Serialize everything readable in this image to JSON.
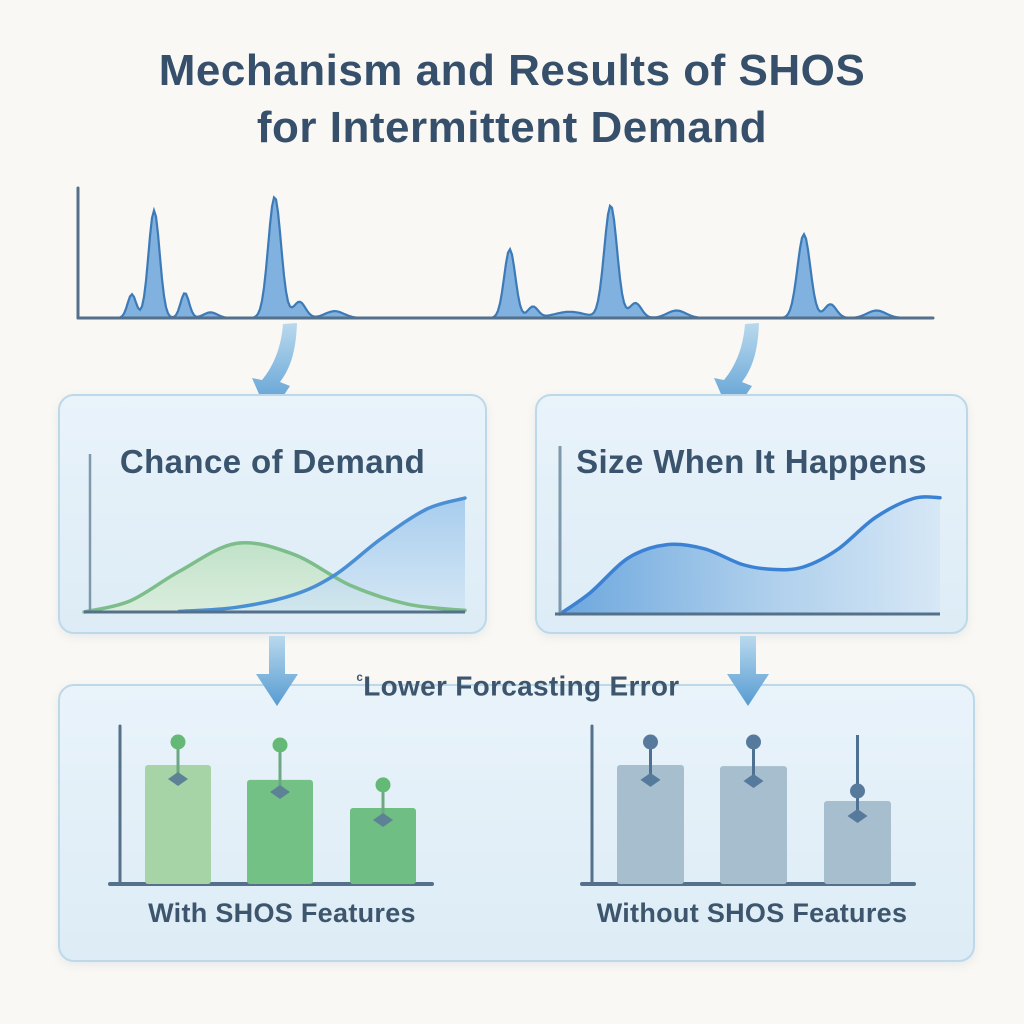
{
  "title": {
    "line1": "Mechanism and Results of SHOS",
    "line2": "for Intermittent Demand"
  },
  "panels": {
    "chance": {
      "title": "Chance of Demand"
    },
    "size": {
      "title": "Size When It Happens"
    }
  },
  "colors": {
    "background": "#faf8f4",
    "panel_bg": "#e4f0f8",
    "panel_border": "#bdd8e9",
    "heading_text": "#364f6b",
    "label_text": "#3d566e",
    "axis": "#54708a",
    "axis_soft": "#7e98ac",
    "spike_fill": "#6ba4d9",
    "spike_stroke": "#3d7ab8",
    "green_stroke": "#7dbd8a",
    "green_fill": "#cbe6cf",
    "blue_stroke": "#4a8fd3",
    "blue_fill_top": "#9cc6ec",
    "blue_fill_bottom": "#d2e6f4",
    "wave_stroke": "#3b82d4",
    "wave_fill_left": "#66a3dc",
    "wave_fill_right": "#d6e7f6",
    "arrow_light": "#b9d9ee",
    "arrow_dark": "#569bd1"
  },
  "chart_data": [
    {
      "id": "intermittent-demand",
      "type": "area",
      "description": "Intermittent demand time series: sparse sharp spikes over a flat zero baseline",
      "x_range": [
        0,
        1
      ],
      "y_range": [
        0,
        1
      ],
      "grid": false,
      "peaks": [
        {
          "x": 0.063,
          "h": 0.19,
          "w": 0.005
        },
        {
          "x": 0.089,
          "h": 0.86,
          "w": 0.0065
        },
        {
          "x": 0.125,
          "h": 0.2,
          "w": 0.005
        },
        {
          "x": 0.155,
          "h": 0.045,
          "w": 0.008
        },
        {
          "x": 0.23,
          "h": 0.97,
          "w": 0.0075
        },
        {
          "x": 0.259,
          "h": 0.13,
          "w": 0.007
        },
        {
          "x": 0.3,
          "h": 0.055,
          "w": 0.011
        },
        {
          "x": 0.505,
          "h": 0.55,
          "w": 0.0065
        },
        {
          "x": 0.532,
          "h": 0.09,
          "w": 0.006
        },
        {
          "x": 0.575,
          "h": 0.05,
          "w": 0.018
        },
        {
          "x": 0.623,
          "h": 0.9,
          "w": 0.0075
        },
        {
          "x": 0.652,
          "h": 0.12,
          "w": 0.007
        },
        {
          "x": 0.7,
          "h": 0.06,
          "w": 0.011
        },
        {
          "x": 0.849,
          "h": 0.67,
          "w": 0.0075
        },
        {
          "x": 0.88,
          "h": 0.11,
          "w": 0.007
        },
        {
          "x": 0.934,
          "h": 0.06,
          "w": 0.011
        }
      ]
    },
    {
      "id": "chance-of-demand",
      "type": "line",
      "title": "Chance of Demand",
      "grid": false,
      "series": [
        {
          "name": "demand-probability-bell",
          "color_key": "green",
          "points": [
            [
              0,
              0
            ],
            [
              0.12,
              0.07
            ],
            [
              0.25,
              0.26
            ],
            [
              0.4,
              0.44
            ],
            [
              0.55,
              0.37
            ],
            [
              0.7,
              0.17
            ],
            [
              0.85,
              0.05
            ],
            [
              1.0,
              0.01
            ]
          ]
        },
        {
          "name": "cumulative-chance-sigmoid",
          "color_key": "blue",
          "points": [
            [
              0.25,
              0.004
            ],
            [
              0.4,
              0.03
            ],
            [
              0.55,
              0.11
            ],
            [
              0.66,
              0.24
            ],
            [
              0.78,
              0.47
            ],
            [
              0.9,
              0.66
            ],
            [
              1.0,
              0.73
            ]
          ]
        }
      ]
    },
    {
      "id": "size-when-it-happens",
      "type": "area",
      "title": "Size When It Happens",
      "grid": false,
      "series": [
        {
          "name": "demand-size-curve",
          "color_key": "blue",
          "points": [
            [
              0,
              0
            ],
            [
              0.08,
              0.13
            ],
            [
              0.18,
              0.34
            ],
            [
              0.28,
              0.42
            ],
            [
              0.38,
              0.395
            ],
            [
              0.48,
              0.3
            ],
            [
              0.56,
              0.27
            ],
            [
              0.64,
              0.285
            ],
            [
              0.73,
              0.39
            ],
            [
              0.83,
              0.585
            ],
            [
              0.93,
              0.7
            ],
            [
              1.0,
              0.705
            ]
          ]
        }
      ]
    },
    {
      "id": "forecast-error-bars",
      "type": "bar",
      "title": "Lower Forcasting Error",
      "title_prefix": "ᶜ",
      "grid": false,
      "groups": [
        {
          "label": "With SHOS Features",
          "bar_colors": [
            "#a7d4a6",
            "#74c186",
            "#6fbe83"
          ],
          "stem_color": "#6da883",
          "dot_color": "#63b975",
          "diamond_color": "#5d8296",
          "bars": [
            {
              "value": 0.763,
              "circle": 0.91,
              "diamond": 0.673
            },
            {
              "value": 0.667,
              "circle": 0.891,
              "diamond": 0.59
            },
            {
              "value": 0.487,
              "circle": 0.635,
              "diamond": 0.41
            }
          ]
        },
        {
          "label": "Without SHOS Features",
          "bar_colors": [
            "#a6becd",
            "#a6becd",
            "#a6becd"
          ],
          "stem_color": "#4f7191",
          "dot_color": "#567a9b",
          "diamond_color": "#567a9b",
          "bars": [
            {
              "value": 0.763,
              "circle": 0.91,
              "diamond": 0.667
            },
            {
              "value": 0.756,
              "circle": 0.91,
              "diamond": 0.66
            },
            {
              "value": 0.532,
              "stem_top": 0.955,
              "circle": 0.596,
              "diamond": 0.436
            }
          ]
        }
      ]
    }
  ]
}
